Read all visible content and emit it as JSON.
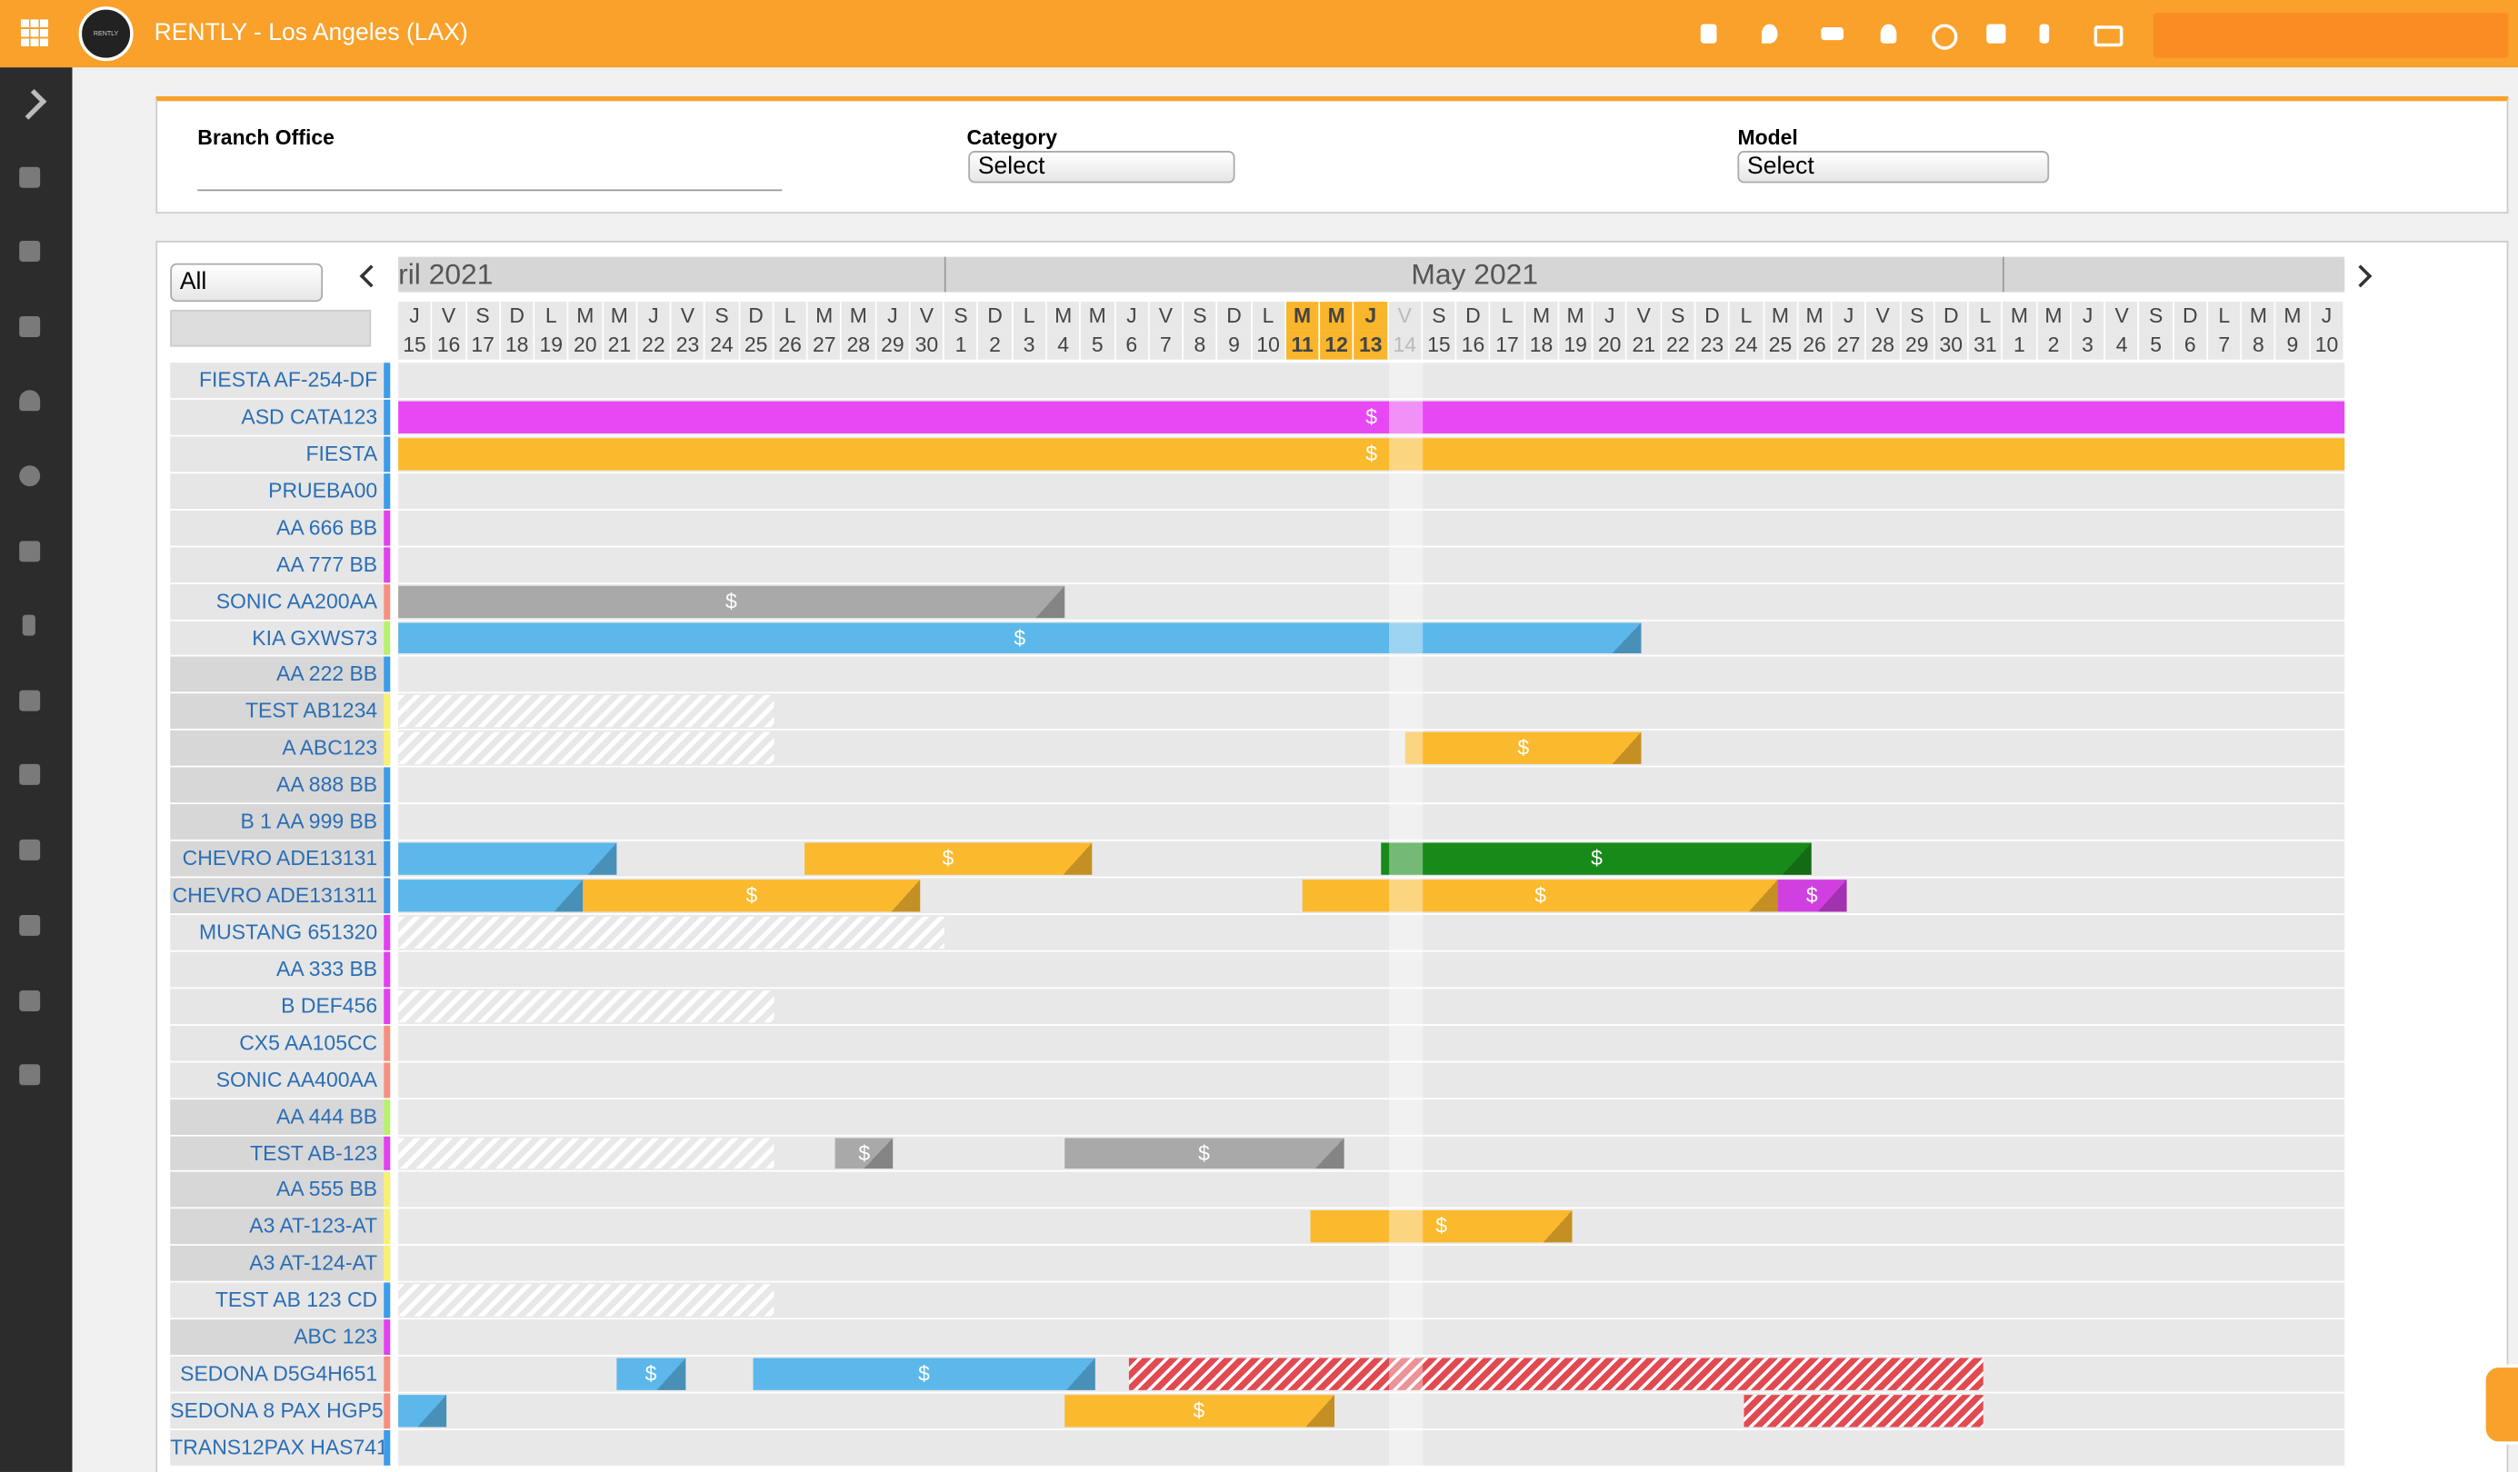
{
  "header": {
    "logo": "RENTLY",
    "title": "RENTLY - Los Angeles (LAX)"
  },
  "filters": {
    "branch_office": "Branch Office",
    "category": "Category",
    "category_value": "Select",
    "model": "Model",
    "model_value": "Select"
  },
  "toolbar": {
    "group_select": "All"
  },
  "months": [
    {
      "label": "ril 2021",
      "start": 0,
      "end": 16
    },
    {
      "label": "May 2021",
      "start": 16,
      "end": 47
    },
    {
      "start": 47,
      "end": 57
    }
  ],
  "days": [
    {
      "letter": "J",
      "number": 15
    },
    {
      "letter": "V",
      "number": 16
    },
    {
      "letter": "S",
      "number": 17
    },
    {
      "letter": "D",
      "number": 18
    },
    {
      "letter": "L",
      "number": 19
    },
    {
      "letter": "M",
      "number": 20
    },
    {
      "letter": "M",
      "number": 21
    },
    {
      "letter": "J",
      "number": 22
    },
    {
      "letter": "V",
      "number": 23
    },
    {
      "letter": "S",
      "number": 24
    },
    {
      "letter": "D",
      "number": 25
    },
    {
      "letter": "L",
      "number": 26
    },
    {
      "letter": "M",
      "number": 27
    },
    {
      "letter": "M",
      "number": 28
    },
    {
      "letter": "J",
      "number": 29
    },
    {
      "letter": "V",
      "number": 30
    },
    {
      "letter": "S",
      "number": 1
    },
    {
      "letter": "D",
      "number": 2
    },
    {
      "letter": "L",
      "number": 3
    },
    {
      "letter": "M",
      "number": 4
    },
    {
      "letter": "M",
      "number": 5
    },
    {
      "letter": "J",
      "number": 6
    },
    {
      "letter": "V",
      "number": 7
    },
    {
      "letter": "S",
      "number": 8
    },
    {
      "letter": "D",
      "number": 9
    },
    {
      "letter": "L",
      "number": 10
    },
    {
      "letter": "M",
      "number": 11,
      "selected": true
    },
    {
      "letter": "M",
      "number": 12,
      "selected": true
    },
    {
      "letter": "J",
      "number": 13,
      "selected": true
    },
    {
      "letter": "V",
      "number": 14,
      "today": true
    },
    {
      "letter": "S",
      "number": 15
    },
    {
      "letter": "D",
      "number": 16
    },
    {
      "letter": "L",
      "number": 17
    },
    {
      "letter": "M",
      "number": 18
    },
    {
      "letter": "M",
      "number": 19
    },
    {
      "letter": "J",
      "number": 20
    },
    {
      "letter": "V",
      "number": 21
    },
    {
      "letter": "S",
      "number": 22
    },
    {
      "letter": "D",
      "number": 23
    },
    {
      "letter": "L",
      "number": 24
    },
    {
      "letter": "M",
      "number": 25
    },
    {
      "letter": "M",
      "number": 26
    },
    {
      "letter": "J",
      "number": 27
    },
    {
      "letter": "V",
      "number": 28
    },
    {
      "letter": "S",
      "number": 29
    },
    {
      "letter": "D",
      "number": 30
    },
    {
      "letter": "L",
      "number": 31
    },
    {
      "letter": "M",
      "number": 1
    },
    {
      "letter": "M",
      "number": 2
    },
    {
      "letter": "J",
      "number": 3
    },
    {
      "letter": "V",
      "number": 4
    },
    {
      "letter": "S",
      "number": 5
    },
    {
      "letter": "D",
      "number": 6
    },
    {
      "letter": "L",
      "number": 7
    },
    {
      "letter": "M",
      "number": 8
    },
    {
      "letter": "M",
      "number": 9
    },
    {
      "letter": "J",
      "number": 10
    }
  ],
  "vehicles": [
    {
      "name": "FIESTA AF-254-DF",
      "color": "#3d9be9"
    },
    {
      "name": "ASD CATA123",
      "color": "#3d9be9"
    },
    {
      "name": "FIESTA",
      "color": "#3d9be9"
    },
    {
      "name": "PRUEBA00",
      "color": "#3d9be9"
    },
    {
      "name": "AA 666 BB",
      "color": "#e040f0"
    },
    {
      "name": "AA 777 BB",
      "color": "#e040f0"
    },
    {
      "name": "SONIC AA200AA",
      "color": "#f59080"
    },
    {
      "name": "KIA GXWS73",
      "color": "#b8f070"
    },
    {
      "name": "AA 222 BB",
      "color": "#3d9be9",
      "shaded": true
    },
    {
      "name": "TEST AB1234",
      "color": "#f7f070",
      "shaded": true
    },
    {
      "name": "A ABC123",
      "color": "#f7f070",
      "shaded": true
    },
    {
      "name": "AA 888 BB",
      "color": "#3d9be9",
      "shaded": true
    },
    {
      "name": "B 1 AA 999 BB",
      "color": "#3d9be9",
      "shaded": true
    },
    {
      "name": "CHEVRO ADE13131",
      "color": "#3d9be9",
      "shaded": true
    },
    {
      "name": "CHEVRO ADE131311",
      "color": "#3d9be9",
      "shaded": true
    },
    {
      "name": "MUSTANG 651320",
      "color": "#e040f0"
    },
    {
      "name": "AA 333 BB",
      "color": "#e040f0"
    },
    {
      "name": "B DEF456",
      "color": "#e040f0"
    },
    {
      "name": "CX5 AA105CC",
      "color": "#f59080"
    },
    {
      "name": "SONIC AA400AA",
      "color": "#f59080"
    },
    {
      "name": "AA 444 BB",
      "color": "#b8f070",
      "shaded": true
    },
    {
      "name": "TEST AB-123",
      "color": "#e040f0",
      "shaded": true
    },
    {
      "name": "AA 555 BB",
      "color": "#f7f070",
      "shaded": true
    },
    {
      "name": "A3 AT-123-AT",
      "color": "#f7f070",
      "shaded": true
    },
    {
      "name": "A3 AT-124-AT",
      "color": "#f7f070",
      "shaded": true
    },
    {
      "name": "TEST AB 123 CD",
      "color": "#3d9be9"
    },
    {
      "name": "ABC 123",
      "color": "#e040f0",
      "shaded": true
    },
    {
      "name": "SEDONA D5G4H651",
      "color": "#f59080"
    },
    {
      "name": "SEDONA 8 PAX HGP5(",
      "color": "#f59080"
    },
    {
      "name": "TRANS12PAX HAS741",
      "color": "#3d9be9"
    }
  ],
  "bookings": [
    {
      "row": 1,
      "start": 0,
      "end": 57,
      "color": "#e848f4",
      "label": "$"
    },
    {
      "row": 2,
      "start": 0,
      "end": 57,
      "color": "#fbb92e",
      "label": "$"
    },
    {
      "row": 6,
      "start": 0,
      "end": 19.5,
      "color": "#a9a9a9",
      "label": "$"
    },
    {
      "row": 7,
      "start": 0,
      "end": 36.4,
      "color": "#5cb8ea",
      "label": "$"
    },
    {
      "row": 9,
      "start": 0,
      "end": 11,
      "color": "hatch"
    },
    {
      "row": 10,
      "start": 0,
      "end": 11,
      "color": "hatch"
    },
    {
      "row": 10,
      "start": 29.5,
      "end": 36.4,
      "color": "#fbb92e",
      "label": "$"
    },
    {
      "row": 13,
      "start": 0,
      "end": 6.4,
      "color": "#5cb8ea"
    },
    {
      "row": 13,
      "start": 11.9,
      "end": 20.3,
      "color": "#fbb92e",
      "label": "$"
    },
    {
      "row": 13,
      "start": 28.8,
      "end": 41.4,
      "color": "#188a1a",
      "label": "$"
    },
    {
      "row": 14,
      "start": 0,
      "end": 5.4,
      "color": "#5cb8ea"
    },
    {
      "row": 14,
      "start": 5.4,
      "end": 15.3,
      "color": "#fbb92e",
      "label": "$"
    },
    {
      "row": 14,
      "start": 26.5,
      "end": 40.4,
      "color": "#fbb92e",
      "label": "$"
    },
    {
      "row": 14,
      "start": 40.4,
      "end": 42.4,
      "color": "#d040e0",
      "label": "$"
    },
    {
      "row": 15,
      "start": 0,
      "end": 16,
      "color": "hatch"
    },
    {
      "row": 17,
      "start": 0,
      "end": 11,
      "color": "hatch"
    },
    {
      "row": 21,
      "start": 0,
      "end": 11,
      "color": "hatch"
    },
    {
      "row": 21,
      "start": 12.8,
      "end": 14.5,
      "color": "#a9a9a9",
      "label": "$"
    },
    {
      "row": 21,
      "start": 19.5,
      "end": 27.7,
      "color": "#a9a9a9",
      "label": "$"
    },
    {
      "row": 23,
      "start": 26.7,
      "end": 34.4,
      "color": "#fbb92e",
      "label": "$"
    },
    {
      "row": 25,
      "start": 0,
      "end": 11,
      "color": "hatch"
    },
    {
      "row": 27,
      "start": 6.4,
      "end": 8.4,
      "color": "#5cb8ea",
      "label": "$"
    },
    {
      "row": 27,
      "start": 10.4,
      "end": 20.4,
      "color": "#5cb8ea",
      "label": "$"
    },
    {
      "row": 27,
      "start": 21.4,
      "end": 46.4,
      "color": "redhatch"
    },
    {
      "row": 28,
      "start": 0,
      "end": 1.4,
      "color": "#5cb8ea"
    },
    {
      "row": 28,
      "start": 19.5,
      "end": 27.4,
      "color": "#fbb92e",
      "label": "$"
    },
    {
      "row": 28,
      "start": 39.4,
      "end": 46.4,
      "color": "redhatch"
    }
  ]
}
